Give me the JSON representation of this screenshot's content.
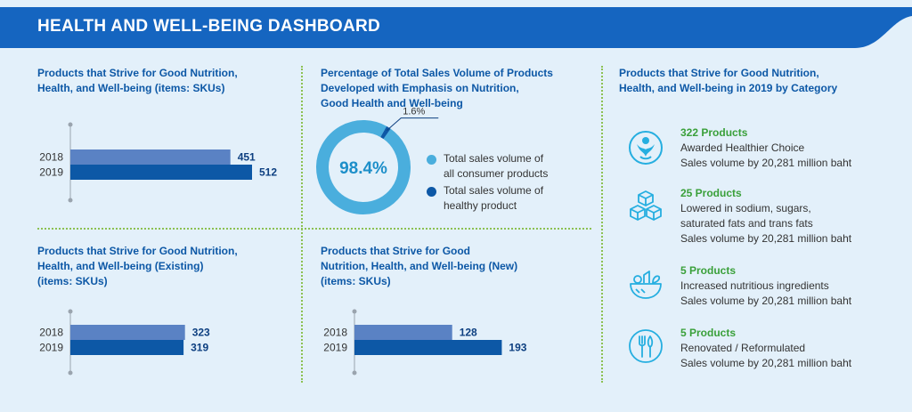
{
  "header": {
    "title": "HEALTH AND WELL-BEING DASHBOARD"
  },
  "colors": {
    "banner": "#1565c0",
    "bar_2018": "#5a82c4",
    "bar_2019": "#0d58a6",
    "donut_main": "#4aaedd",
    "donut_healthy": "#0d58a6",
    "divider": "#8cc152"
  },
  "panels": {
    "total": {
      "title_lines": [
        "Products that Strive for Good Nutrition,",
        "Health, and Well-being (items: SKUs)"
      ],
      "chart_data": {
        "type": "bar",
        "orientation": "horizontal",
        "categories": [
          "2018",
          "2019"
        ],
        "values": [
          451,
          512
        ],
        "xlim": [
          0,
          640
        ]
      }
    },
    "existing": {
      "title_lines": [
        "Products that Strive for Good Nutrition,",
        "Health, and Well-being (Existing)",
        "(items: SKUs)"
      ],
      "chart_data": {
        "type": "bar",
        "orientation": "horizontal",
        "categories": [
          "2018",
          "2019"
        ],
        "values": [
          323,
          319
        ],
        "xlim": [
          0,
          640
        ]
      }
    },
    "new": {
      "title_lines": [
        "Products that Strive for Good",
        "Nutrition, Health, and Well-being (New)",
        "(items: SKUs)"
      ],
      "chart_data": {
        "type": "bar",
        "orientation": "horizontal",
        "categories": [
          "2018",
          "2019"
        ],
        "values": [
          128,
          193
        ],
        "xlim": [
          0,
          280
        ]
      }
    },
    "share": {
      "title_lines": [
        "Percentage of Total Sales Volume of Products",
        "Developed with Emphasis on Nutrition,",
        "Good Health and Well-being"
      ],
      "chart_data": {
        "type": "pie",
        "slices": [
          {
            "name": "Total sales volume of all consumer products",
            "value": 98.4,
            "label": "98.4%"
          },
          {
            "name": "Total sales volume of healthy product",
            "value": 1.6,
            "label": "1.6%"
          }
        ]
      },
      "legend": [
        {
          "lines": [
            "Total sales volume of",
            "all consumer products"
          ]
        },
        {
          "lines": [
            "Total sales volume of",
            "healthy product"
          ]
        }
      ]
    },
    "categories": {
      "title_lines": [
        "Products that Strive for Good Nutrition,",
        "Health, and Well-being in 2019 by Category"
      ],
      "items": [
        {
          "icon": "healthy-person-icon",
          "count": "322 Products",
          "lines": [
            "Awarded Healthier Choice",
            "Sales volume by 20,281 million baht"
          ]
        },
        {
          "icon": "sugar-cubes-icon",
          "count": "25 Products",
          "lines": [
            "Lowered in sodium, sugars,",
            "saturated fats and trans fats",
            "Sales volume by 20,281 million baht"
          ]
        },
        {
          "icon": "nutrient-bowl-icon",
          "count": "5 Products",
          "lines": [
            "Increased nutritious ingredients",
            "Sales volume by 20,281 million baht"
          ]
        },
        {
          "icon": "cutlery-icon",
          "count": "5 Products",
          "lines": [
            "Renovated / Reformulated",
            "Sales volume by 20,281 million baht"
          ]
        }
      ]
    }
  }
}
